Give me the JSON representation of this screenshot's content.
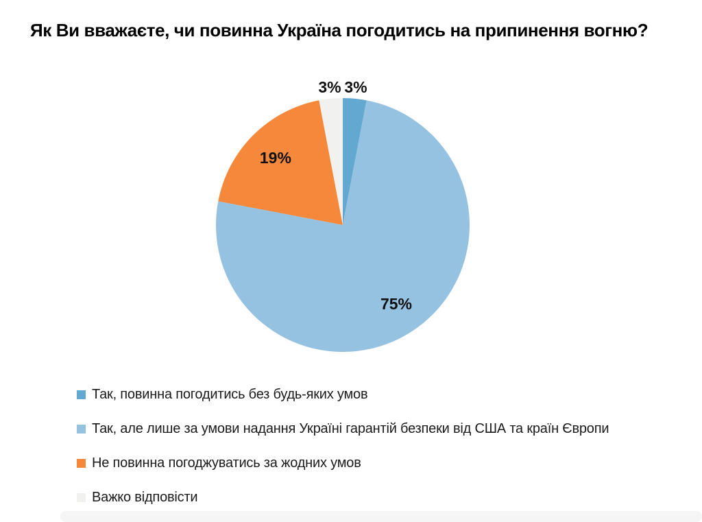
{
  "chart_data": {
    "type": "pie",
    "title": "Як Ви вважаєте, чи повинна Україна погодитись на припинення вогню?",
    "labels": [
      "Так, повинна погодитись без будь-яких умов",
      "Так, але лише за умови надання Україні гарантій безпеки від США та країн Європи",
      "Не повинна погоджуватись за жодних умов",
      "Важко відповісти"
    ],
    "values": [
      3,
      75,
      19,
      3
    ],
    "value_labels": [
      "3%",
      "75%",
      "19%",
      "3%"
    ],
    "colors": [
      "#63a8d1",
      "#96c2e1",
      "#f6883b",
      "#f1f1f0"
    ],
    "start_angle_deg": 0,
    "direction": "clockwise",
    "legend_position": "bottom-left",
    "label_color": "#111111"
  }
}
